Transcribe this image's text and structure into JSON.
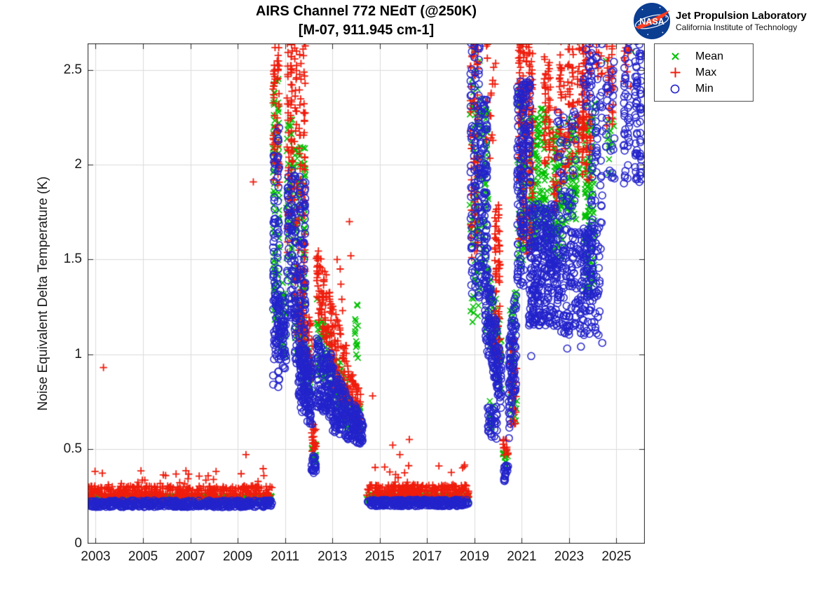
{
  "branding": {
    "logo_alt": "NASA",
    "name": "Jet Propulsion Laboratory",
    "sub": "California Institute of Technology"
  },
  "chart_data": {
    "type": "scatter",
    "title": "AIRS Channel 772 NEdT (@250K)",
    "subtitle": "[M-07, 911.945 cm-1]",
    "xlabel": "",
    "ylabel": "Noise Equivalent Delta Temperature (K)",
    "xlim": [
      2002.66,
      2026.2
    ],
    "ylim": [
      0,
      2.641
    ],
    "grid": true,
    "xticks": [
      2003,
      2005,
      2007,
      2009,
      2011,
      2013,
      2015,
      2017,
      2019,
      2021,
      2023,
      2025
    ],
    "xtick_labels": [
      "2003",
      "2005",
      "2007",
      "2009",
      "2011",
      "2013",
      "2015",
      "2017",
      "2019",
      "2021",
      "2023",
      "2025"
    ],
    "yticks": [
      0,
      0.5,
      1,
      1.5,
      2,
      2.5
    ],
    "ytick_labels": [
      "0",
      "0.5",
      "1",
      "1.5",
      "2",
      "2.5"
    ],
    "colors": {
      "grid": "#dcdcdc",
      "axis": "#262626",
      "background": "#ffffff"
    },
    "legend": {
      "position": "outside-top-right",
      "entries": [
        {
          "id": "mean",
          "label": "Mean",
          "marker": "x",
          "color": "#00c000"
        },
        {
          "id": "max",
          "label": "Max",
          "marker": "+",
          "color": "#ef1d0d"
        },
        {
          "id": "min",
          "label": "Min",
          "marker": "o",
          "color": "#2424cc"
        }
      ]
    },
    "series_order": [
      "mean",
      "max",
      "min"
    ],
    "clusters": [
      {
        "s": "mean",
        "x": [
          2002.72,
          2010.45
        ],
        "k": [
          0.225,
          0.255
        ],
        "n": 420
      },
      {
        "s": "max",
        "x": [
          2002.72,
          2010.45
        ],
        "k": [
          0.235,
          0.305
        ],
        "n": 430
      },
      {
        "s": "max",
        "x": [
          2002.8,
          2010.4
        ],
        "k": [
          0.3,
          0.4
        ],
        "n": 26
      },
      {
        "s": "min",
        "x": [
          2002.72,
          2010.45
        ],
        "k": [
          0.193,
          0.228
        ],
        "n": 470
      },
      {
        "s": "max",
        "x": [
          2010.45,
          2010.8
        ],
        "k": [
          1.85,
          2.62
        ],
        "n": 60,
        "cols": 2
      },
      {
        "s": "mean",
        "x": [
          2010.45,
          2010.8
        ],
        "k": [
          1.15,
          2.52
        ],
        "n": 70,
        "cols": 2
      },
      {
        "s": "min",
        "x": [
          2010.45,
          2010.8
        ],
        "k": [
          0.82,
          2.2
        ],
        "n": 75,
        "cols": 2
      },
      {
        "s": "min",
        "x": [
          2010.55,
          2011.05
        ],
        "k": [
          1.0,
          1.45
        ],
        "k2": [
          0.9,
          1.25
        ],
        "n": 90
      },
      {
        "s": "mean",
        "x": [
          2010.6,
          2011.05
        ],
        "k": [
          1.05,
          1.5
        ],
        "k2": [
          0.95,
          1.35
        ],
        "n": 40
      },
      {
        "s": "max",
        "x": [
          2011.05,
          2011.35
        ],
        "k": [
          1.5,
          2.67
        ],
        "n": 70,
        "cols": 2
      },
      {
        "s": "mean",
        "x": [
          2011.05,
          2011.35
        ],
        "k": [
          1.3,
          2.25
        ],
        "n": 50
      },
      {
        "s": "min",
        "x": [
          2011.05,
          2011.35
        ],
        "k": [
          1.18,
          2.0
        ],
        "n": 60,
        "cols": 2
      },
      {
        "s": "max",
        "x": [
          2011.35,
          2011.9
        ],
        "k": [
          1.05,
          2.67
        ],
        "n": 130,
        "cols": 3
      },
      {
        "s": "mean",
        "x": [
          2011.35,
          2011.9
        ],
        "k": [
          1.0,
          2.1
        ],
        "n": 90,
        "cols": 3
      },
      {
        "s": "min",
        "x": [
          2011.35,
          2011.9
        ],
        "k": [
          0.95,
          1.95
        ],
        "n": 130,
        "cols": 3
      },
      {
        "s": "min",
        "x": [
          2011.55,
          2012.15
        ],
        "k": [
          0.72,
          1.12
        ],
        "k2": [
          0.6,
          0.95
        ],
        "n": 160
      },
      {
        "s": "mean",
        "x": [
          2011.6,
          2012.15
        ],
        "k": [
          0.85,
          1.2
        ],
        "k2": [
          0.7,
          1.0
        ],
        "n": 55
      },
      {
        "s": "max",
        "x": [
          2011.6,
          2012.15
        ],
        "k": [
          1.0,
          1.4
        ],
        "k2": [
          0.85,
          1.15
        ],
        "n": 55
      },
      {
        "s": "max",
        "x": [
          2012.12,
          2012.32
        ],
        "k": [
          0.48,
          0.63
        ],
        "n": 22
      },
      {
        "s": "mean",
        "x": [
          2012.12,
          2012.32
        ],
        "k": [
          0.43,
          0.53
        ],
        "n": 18
      },
      {
        "s": "min",
        "x": [
          2012.12,
          2012.32
        ],
        "k": [
          0.37,
          0.47
        ],
        "n": 24
      },
      {
        "s": "max",
        "x": [
          2012.32,
          2012.95
        ],
        "k": [
          1.2,
          1.6
        ],
        "k2": [
          0.95,
          1.35
        ],
        "n": 85
      },
      {
        "s": "mean",
        "x": [
          2012.32,
          2012.95
        ],
        "k": [
          0.9,
          1.3
        ],
        "k2": [
          0.8,
          1.1
        ],
        "n": 55
      },
      {
        "s": "min",
        "x": [
          2012.32,
          2012.95
        ],
        "k": [
          0.72,
          1.1
        ],
        "k2": [
          0.65,
          1.0
        ],
        "n": 130
      },
      {
        "s": "max",
        "x": [
          2012.95,
          2013.6
        ],
        "k": [
          0.85,
          1.3
        ],
        "k2": [
          0.7,
          1.05
        ],
        "n": 80
      },
      {
        "s": "mean",
        "x": [
          2012.95,
          2013.6
        ],
        "k": [
          0.72,
          1.05
        ],
        "k2": [
          0.62,
          0.9
        ],
        "n": 50
      },
      {
        "s": "min",
        "x": [
          2012.95,
          2013.6
        ],
        "k": [
          0.6,
          0.95
        ],
        "k2": [
          0.55,
          0.8
        ],
        "n": 115
      },
      {
        "s": "max",
        "x": [
          2013.6,
          2014.2
        ],
        "k": [
          0.68,
          0.95
        ],
        "k2": [
          0.6,
          0.82
        ],
        "n": 55
      },
      {
        "s": "mean",
        "x": [
          2013.6,
          2014.2
        ],
        "k": [
          0.6,
          0.82
        ],
        "k2": [
          0.56,
          0.72
        ],
        "n": 40
      },
      {
        "s": "min",
        "x": [
          2013.6,
          2014.3
        ],
        "k": [
          0.55,
          0.78
        ],
        "k2": [
          0.52,
          0.68
        ],
        "n": 115
      },
      {
        "s": "mean",
        "x": [
          2013.95,
          2014.08
        ],
        "k": [
          0.95,
          1.32
        ],
        "n": 14
      },
      {
        "s": "mean",
        "x": [
          2014.45,
          2018.75
        ],
        "k": [
          0.225,
          0.26
        ],
        "n": 270
      },
      {
        "s": "max",
        "x": [
          2014.45,
          2018.75
        ],
        "k": [
          0.24,
          0.31
        ],
        "n": 280
      },
      {
        "s": "max",
        "x": [
          2014.5,
          2018.7
        ],
        "k": [
          0.3,
          0.42
        ],
        "n": 16
      },
      {
        "s": "min",
        "x": [
          2014.45,
          2018.75
        ],
        "k": [
          0.198,
          0.232
        ],
        "n": 290
      },
      {
        "s": "max",
        "x": [
          2018.8,
          2019.2
        ],
        "k": [
          1.5,
          2.72
        ],
        "n": 80,
        "cols": 3
      },
      {
        "s": "mean",
        "x": [
          2018.8,
          2019.25
        ],
        "k": [
          1.2,
          2.72
        ],
        "n": 90
      },
      {
        "s": "min",
        "x": [
          2018.8,
          2019.25
        ],
        "k": [
          1.3,
          2.72
        ],
        "n": 110,
        "cols": 3
      },
      {
        "s": "min",
        "x": [
          2019.25,
          2019.55
        ],
        "k": [
          1.35,
          2.35
        ],
        "n": 90
      },
      {
        "s": "mean",
        "x": [
          2019.25,
          2019.6
        ],
        "k": [
          1.4,
          2.35
        ],
        "n": 55
      },
      {
        "s": "max",
        "x": [
          2019.45,
          2019.9
        ],
        "k": [
          2.0,
          2.65
        ],
        "n": 20
      },
      {
        "s": "min",
        "x": [
          2019.45,
          2020.15
        ],
        "k": [
          1.05,
          1.55
        ],
        "k2": [
          0.7,
          1.0
        ],
        "n": 160
      },
      {
        "s": "mean",
        "x": [
          2019.5,
          2020.15
        ],
        "k": [
          1.1,
          1.6
        ],
        "k2": [
          0.8,
          1.12
        ],
        "n": 70
      },
      {
        "s": "max",
        "x": [
          2019.82,
          2020.12
        ],
        "k": [
          0.9,
          1.8
        ],
        "n": 75,
        "cols": 2
      },
      {
        "s": "min",
        "x": [
          2019.55,
          2019.95
        ],
        "k": [
          0.55,
          0.73
        ],
        "n": 35
      },
      {
        "s": "mean",
        "x": [
          2019.6,
          2019.85
        ],
        "k": [
          0.6,
          0.76
        ],
        "n": 12
      },
      {
        "s": "max",
        "x": [
          2020.2,
          2020.42
        ],
        "k": [
          0.44,
          0.55
        ],
        "n": 14
      },
      {
        "s": "mean",
        "x": [
          2020.2,
          2020.42
        ],
        "k": [
          0.4,
          0.49
        ],
        "n": 12
      },
      {
        "s": "min",
        "x": [
          2020.22,
          2020.42
        ],
        "k": [
          0.32,
          0.42
        ],
        "n": 18
      },
      {
        "s": "min",
        "x": [
          2020.45,
          2020.78
        ],
        "k": [
          0.55,
          1.05
        ],
        "k2": [
          0.85,
          1.4
        ],
        "n": 100
      },
      {
        "s": "mean",
        "x": [
          2020.5,
          2020.8
        ],
        "k": [
          0.65,
          1.35
        ],
        "n": 40
      },
      {
        "s": "max",
        "x": [
          2020.52,
          2020.78
        ],
        "k": [
          0.6,
          1.12
        ],
        "n": 30
      },
      {
        "s": "min",
        "x": [
          2020.78,
          2021.12
        ],
        "k": [
          1.35,
          2.45
        ],
        "n": 120,
        "cols": 3
      },
      {
        "s": "mean",
        "x": [
          2020.8,
          2021.15
        ],
        "k": [
          1.45,
          2.4
        ],
        "n": 60
      },
      {
        "s": "max",
        "x": [
          2020.82,
          2021.15
        ],
        "k": [
          1.6,
          2.72
        ],
        "n": 85,
        "cols": 2
      },
      {
        "s": "max",
        "x": [
          2021.15,
          2021.5
        ],
        "k": [
          1.5,
          2.72
        ],
        "n": 110,
        "cols": 3
      },
      {
        "s": "mean",
        "x": [
          2021.3,
          2022.1
        ],
        "k": [
          1.55,
          2.3
        ],
        "n": 150
      },
      {
        "s": "min",
        "x": [
          2021.05,
          2021.4
        ],
        "k": [
          1.9,
          2.45
        ],
        "n": 55,
        "cols": 2
      },
      {
        "s": "min",
        "x": [
          2021.3,
          2022.45
        ],
        "k": [
          1.15,
          1.8
        ],
        "n": 300
      },
      {
        "s": "max",
        "x": [
          2021.9,
          2022.25
        ],
        "k": [
          2.0,
          2.72
        ],
        "n": 55,
        "cols": 2
      },
      {
        "s": "max",
        "x": [
          2022.3,
          2022.5
        ],
        "k": [
          1.75,
          2.3
        ],
        "n": 25
      },
      {
        "s": "mean",
        "x": [
          2022.2,
          2022.8
        ],
        "k": [
          1.5,
          2.2
        ],
        "n": 100
      },
      {
        "s": "min",
        "x": [
          2022.45,
          2024.3
        ],
        "k": [
          1.1,
          1.67
        ],
        "n": 240
      },
      {
        "s": "max",
        "x": [
          2022.55,
          2023.25
        ],
        "k": [
          1.9,
          2.72
        ],
        "n": 85,
        "cols": 4
      },
      {
        "s": "mean",
        "x": [
          2022.85,
          2023.45
        ],
        "k": [
          1.7,
          2.25
        ],
        "n": 70
      },
      {
        "s": "min",
        "x": [
          2022.5,
          2023.3
        ],
        "k": [
          1.7,
          2.3
        ],
        "n": 50
      },
      {
        "s": "max",
        "x": [
          2023.3,
          2023.7
        ],
        "k": [
          2.05,
          2.72
        ],
        "n": 45,
        "cols": 2
      },
      {
        "s": "max",
        "x": [
          2023.5,
          2023.95
        ],
        "k": [
          1.9,
          2.72
        ],
        "n": 70,
        "cols": 3
      },
      {
        "s": "mean",
        "x": [
          2023.65,
          2024.1
        ],
        "k": [
          1.3,
          2.35
        ],
        "n": 110
      },
      {
        "s": "min",
        "x": [
          2023.65,
          2024.05
        ],
        "k": [
          1.3,
          1.68
        ],
        "n": 30
      },
      {
        "s": "min",
        "x": [
          2023.6,
          2023.95
        ],
        "k": [
          2.3,
          2.72
        ],
        "n": 25
      },
      {
        "s": "min",
        "x": [
          2023.85,
          2024.45
        ],
        "k": [
          1.55,
          2.72
        ],
        "n": 70,
        "cols": 3
      },
      {
        "s": "max",
        "x": [
          2024.15,
          2024.4
        ],
        "k": [
          2.4,
          2.65
        ],
        "n": 10
      },
      {
        "s": "max",
        "x": [
          2024.55,
          2024.9
        ],
        "k": [
          2.2,
          2.72
        ],
        "n": 35,
        "cols": 2
      },
      {
        "s": "min",
        "x": [
          2024.55,
          2024.95
        ],
        "k": [
          1.9,
          2.6
        ],
        "n": 30
      },
      {
        "s": "mean",
        "x": [
          2024.6,
          2024.9
        ],
        "k": [
          1.95,
          2.3
        ],
        "n": 14
      },
      {
        "s": "min",
        "x": [
          2025.25,
          2025.6
        ],
        "k": [
          1.9,
          2.72
        ],
        "n": 45,
        "cols": 2
      },
      {
        "s": "max",
        "x": [
          2025.3,
          2025.6
        ],
        "k": [
          2.4,
          2.72
        ],
        "n": 12
      },
      {
        "s": "min",
        "x": [
          2025.75,
          2026.1
        ],
        "k": [
          1.9,
          2.72
        ],
        "n": 70,
        "cols": 2
      }
    ],
    "outliers": [
      {
        "s": "max",
        "x": 2003.33,
        "k": 0.93
      },
      {
        "s": "max",
        "x": 2009.35,
        "k": 0.47
      },
      {
        "s": "max",
        "x": 2009.66,
        "k": 1.91
      },
      {
        "s": "max",
        "x": 2013.2,
        "k": 1.5
      },
      {
        "s": "max",
        "x": 2013.33,
        "k": 1.45
      },
      {
        "s": "max",
        "x": 2013.36,
        "k": 1.37
      },
      {
        "s": "max",
        "x": 2013.4,
        "k": 1.29
      },
      {
        "s": "max",
        "x": 2013.43,
        "k": 1.23
      },
      {
        "s": "max",
        "x": 2013.72,
        "k": 1.7
      },
      {
        "s": "max",
        "x": 2013.78,
        "k": 1.52
      },
      {
        "s": "max",
        "x": 2014.7,
        "k": 0.78
      },
      {
        "s": "max",
        "x": 2015.55,
        "k": 0.52
      },
      {
        "s": "max",
        "x": 2015.85,
        "k": 0.47
      },
      {
        "s": "max",
        "x": 2016.25,
        "k": 0.55
      },
      {
        "s": "max",
        "x": 2017.5,
        "k": 0.41
      },
      {
        "s": "max",
        "x": 2018.5,
        "k": 0.4
      },
      {
        "s": "mean",
        "x": 2018.92,
        "k": 1.17
      },
      {
        "s": "mean",
        "x": 2024.55,
        "k": 2.55
      },
      {
        "s": "mean",
        "x": 2025.65,
        "k": 2.6
      },
      {
        "s": "min",
        "x": 2010.5,
        "k": 0.84
      },
      {
        "s": "min",
        "x": 2021.4,
        "k": 0.99
      },
      {
        "s": "min",
        "x": 2022.92,
        "k": 1.03
      },
      {
        "s": "min",
        "x": 2023.5,
        "k": 1.04
      },
      {
        "s": "min",
        "x": 2024.4,
        "k": 1.06
      },
      {
        "s": "min",
        "x": 2026.0,
        "k": 1.96
      }
    ]
  }
}
